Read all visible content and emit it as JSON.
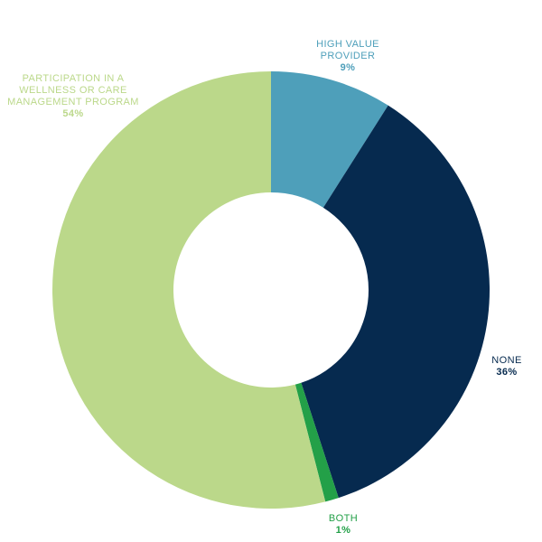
{
  "chart_data": {
    "type": "pie",
    "donut": true,
    "categories": [
      "HIGH VALUE PROVIDER",
      "NONE",
      "BOTH",
      "PARTICIPATION IN A WELLNESS OR CARE MANAGEMENT PROGRAM"
    ],
    "values": [
      9,
      36,
      1,
      54
    ],
    "colors": [
      "#4E9FBA",
      "#062A4F",
      "#23A048",
      "#BBD88A"
    ],
    "labels": [
      {
        "name": "HIGH VALUE PROVIDER",
        "value": "9%"
      },
      {
        "name": "NONE",
        "value": "36%"
      },
      {
        "name": "BOTH",
        "value": "1%"
      },
      {
        "name": "PARTICIPATION IN A WELLNESS OR CARE MANAGEMENT PROGRAM",
        "value": "54%"
      }
    ],
    "start_angle": "12 o'clock",
    "direction": "clockwise",
    "legend": "none"
  }
}
